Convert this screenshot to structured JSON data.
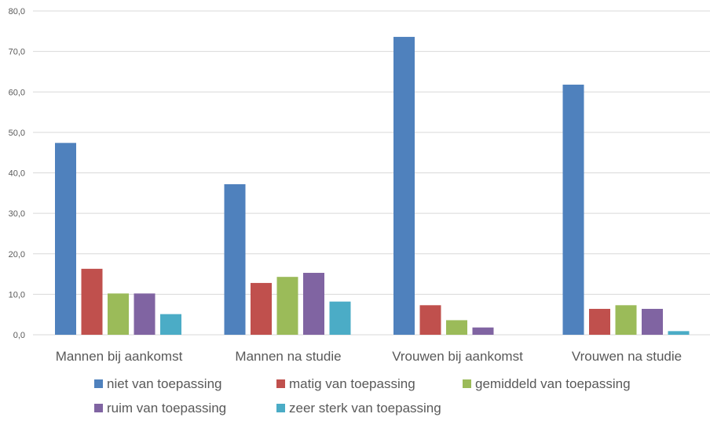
{
  "chart_data": {
    "type": "bar",
    "title": "",
    "xlabel": "",
    "ylabel": "",
    "categories": [
      "Mannen bij aankomst",
      "Mannen na studie",
      "Vrouwen bij aankomst",
      "Vrouwen na studie"
    ],
    "ylim": [
      0,
      80
    ],
    "yticks": [
      0,
      10,
      20,
      30,
      40,
      50,
      60,
      70,
      80
    ],
    "ytick_labels": [
      "0,0",
      "10,0",
      "20,0",
      "30,0",
      "40,0",
      "50,0",
      "60,0",
      "70,0",
      "80,0"
    ],
    "grid": true,
    "legend_position": "bottom",
    "series": [
      {
        "name": "niet van toepassing",
        "color": "#4f81bd",
        "values": [
          47.4,
          37.2,
          73.6,
          61.8
        ]
      },
      {
        "name": "matig van toepassing",
        "color": "#c0504d",
        "values": [
          16.3,
          12.8,
          7.3,
          6.4
        ]
      },
      {
        "name": "gemiddeld van toepassing",
        "color": "#9bbb59",
        "values": [
          10.2,
          14.3,
          3.6,
          7.3
        ]
      },
      {
        "name": "ruim van toepassing",
        "color": "#8064a2",
        "values": [
          10.2,
          15.3,
          1.8,
          6.4
        ]
      },
      {
        "name": "zeer sterk van toepassing",
        "color": "#4bacc6",
        "values": [
          5.1,
          8.2,
          0.0,
          0.9
        ]
      }
    ]
  }
}
